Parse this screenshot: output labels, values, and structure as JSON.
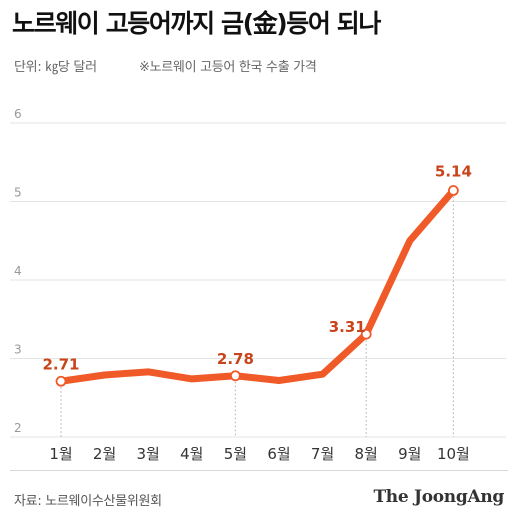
{
  "header": {
    "title": "노르웨이 고등어까지 금(金)등어 되나",
    "unit": "단위: ㎏당 달러",
    "note": "※노르웨이 고등어 한국 수출 가격"
  },
  "footer": {
    "source": "자료: 노르웨이수산물위원회",
    "brand": "The JoongAng"
  },
  "colors": {
    "line": "#f05a28",
    "label": "#c8441a",
    "grid": "#e4e4e4",
    "axis_text": "#999999"
  },
  "chart_data": {
    "type": "line",
    "title": "노르웨이 고등어까지 금(金)등어 되나",
    "xlabel": "",
    "ylabel": "단위: ㎏당 달러",
    "categories": [
      "1월",
      "2월",
      "3월",
      "4월",
      "5월",
      "6월",
      "7월",
      "8월",
      "9월",
      "10월"
    ],
    "series": [
      {
        "values": [
          2.71,
          2.79,
          2.83,
          2.74,
          2.78,
          2.72,
          2.8,
          3.31,
          4.5,
          5.14
        ]
      }
    ],
    "ylim": [
      2,
      6
    ],
    "yticks": [
      2,
      3,
      4,
      5,
      6
    ],
    "labeled_points": [
      {
        "index": 0,
        "label": "2.71"
      },
      {
        "index": 4,
        "label": "2.78"
      },
      {
        "index": 7,
        "label": "3.31"
      },
      {
        "index": 9,
        "label": "5.14"
      }
    ],
    "grid": true,
    "legend": "none"
  }
}
